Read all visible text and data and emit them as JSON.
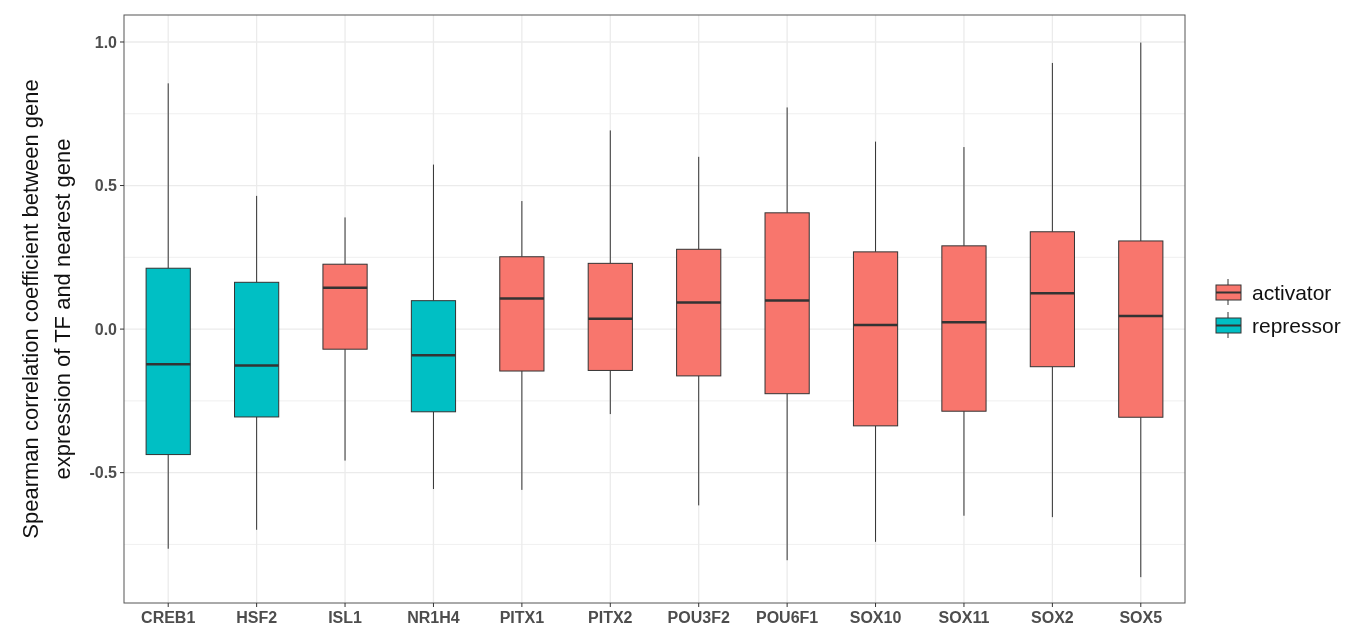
{
  "chart_data": {
    "type": "box",
    "categories": [
      "CREB1",
      "HSF2",
      "ISL1",
      "NR1H4",
      "PITX1",
      "PITX2",
      "POU3F2",
      "POU6F1",
      "SOX10",
      "SOX11",
      "SOX2",
      "SOX5"
    ],
    "ylabel": "Spearman correlation coefficient between gene\nexpression of TF and nearest gene",
    "ylim": [
      -0.954,
      1.094
    ],
    "yticks": [
      {
        "value": -0.75,
        "label": null
      },
      -0.5,
      {
        "value": -0.25,
        "label": null
      },
      {
        "value": 0,
        "label": "0.0"
      },
      {
        "value": 0.25,
        "label": null
      },
      0.5,
      {
        "value": 0.75,
        "label": null
      },
      {
        "value": 1,
        "label": "1.0"
      }
    ],
    "grid": true,
    "legend": "right",
    "series": [
      {
        "name": "activator",
        "color": "#f8766d",
        "boxes": [
          null,
          null,
          {
            "low": -0.458,
            "q1": -0.07,
            "median": 0.144,
            "q3": 0.226,
            "high": 0.389
          },
          null,
          {
            "low": -0.56,
            "q1": -0.146,
            "median": 0.107,
            "q3": 0.252,
            "high": 0.446
          },
          {
            "low": -0.296,
            "q1": -0.144,
            "median": 0.036,
            "q3": 0.229,
            "high": 0.692
          },
          {
            "low": -0.614,
            "q1": -0.163,
            "median": 0.093,
            "q3": 0.278,
            "high": 0.6
          },
          {
            "low": -0.805,
            "q1": -0.225,
            "median": 0.1,
            "q3": 0.405,
            "high": 0.772
          },
          {
            "low": -0.741,
            "q1": -0.337,
            "median": 0.014,
            "q3": 0.269,
            "high": 0.653
          },
          {
            "low": -0.65,
            "q1": -0.286,
            "median": 0.024,
            "q3": 0.29,
            "high": 0.634
          },
          {
            "low": -0.655,
            "q1": -0.131,
            "median": 0.125,
            "q3": 0.339,
            "high": 0.927
          },
          {
            "low": -0.864,
            "q1": -0.307,
            "median": 0.046,
            "q3": 0.307,
            "high": 0.998
          }
        ]
      },
      {
        "name": "repressor",
        "color": "#00bfc4",
        "boxes": [
          {
            "low": -0.765,
            "q1": -0.437,
            "median": -0.122,
            "q3": 0.212,
            "high": 0.856
          },
          {
            "low": -0.699,
            "q1": -0.306,
            "median": -0.127,
            "q3": 0.163,
            "high": 0.464
          },
          null,
          {
            "low": -0.557,
            "q1": -0.288,
            "median": -0.091,
            "q3": 0.099,
            "high": 0.573
          },
          null,
          null,
          null,
          null,
          null,
          null,
          null,
          null
        ]
      }
    ]
  }
}
